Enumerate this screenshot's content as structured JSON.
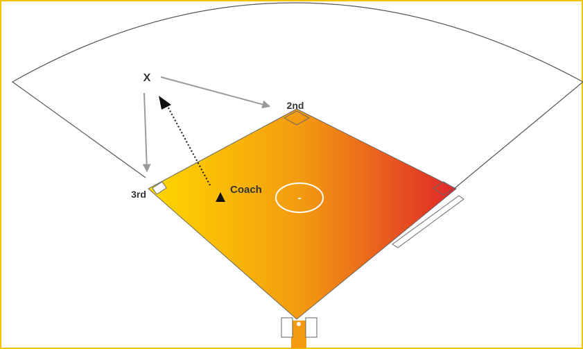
{
  "diagram": {
    "labels": {
      "player_marker": "X",
      "second_base": "2nd",
      "third_base": "3rd",
      "coach": "Coach",
      "mound": "-"
    },
    "colors": {
      "frame_border": "#f2c300",
      "infield_gradient_start": "#ffd800",
      "infield_gradient_mid": "#f39a10",
      "infield_gradient_end": "#e0262a",
      "movement_arrow": "#9a9a9a",
      "coach_route": "#222222",
      "outline": "#555555"
    },
    "icons": {
      "coach_marker": "triangle-icon",
      "route_arrowhead": "arrowhead-icon"
    }
  }
}
